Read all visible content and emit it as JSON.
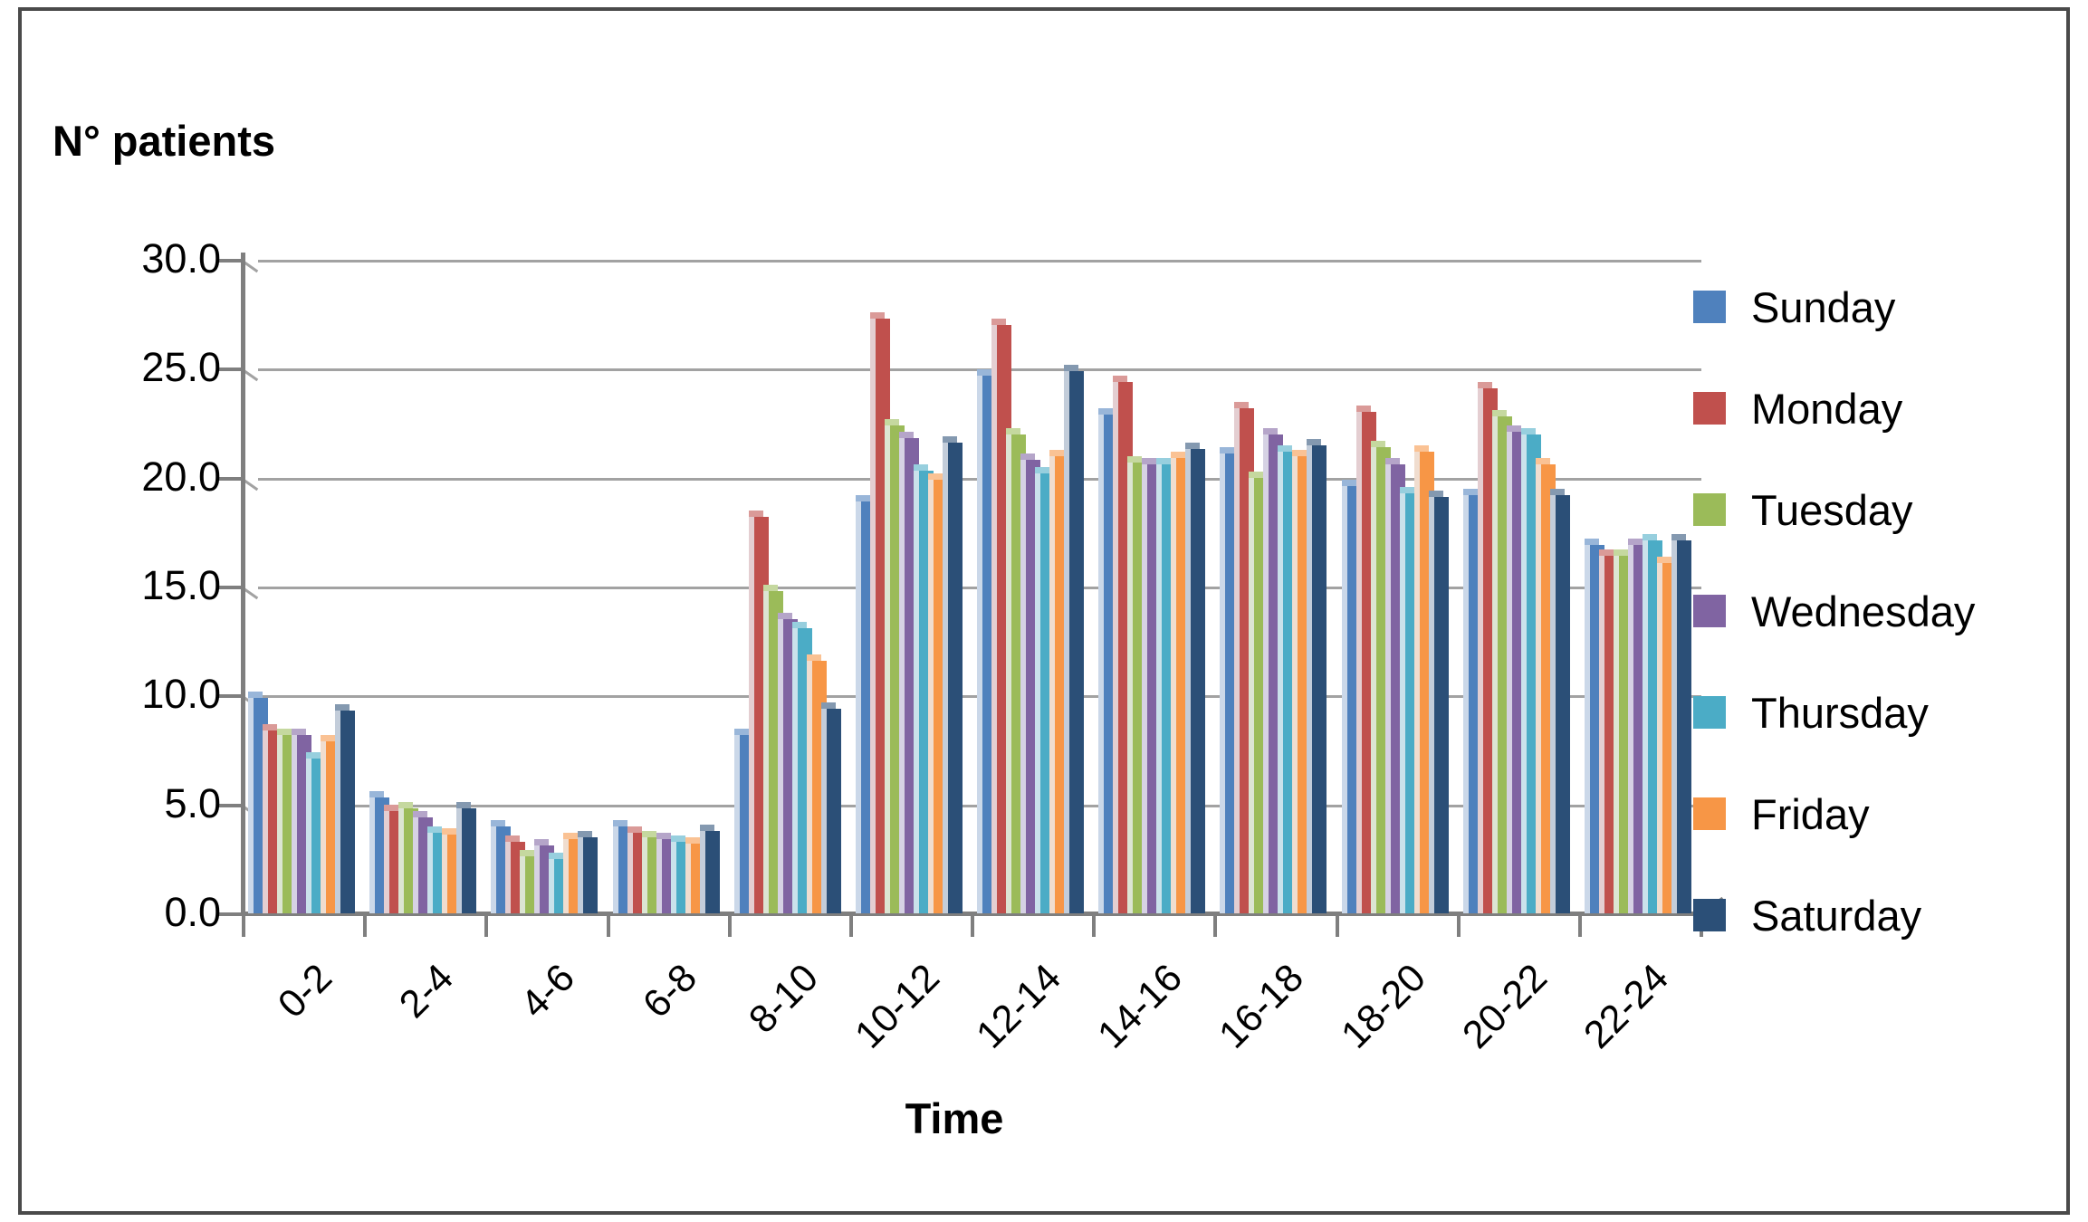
{
  "chart_data": {
    "type": "bar",
    "title": "",
    "ylabel": "N° patients",
    "xlabel": "Time",
    "categories": [
      "0-2",
      "2-4",
      "4-6",
      "6-8",
      "8-10",
      "10-12",
      "12-14",
      "14-16",
      "16-18",
      "18-20",
      "20-22",
      "22-24"
    ],
    "yticks": [
      "0.0",
      "5.0",
      "10.0",
      "15.0",
      "20.0",
      "25.0",
      "30.0"
    ],
    "ylim": [
      0,
      30
    ],
    "ytick_step": 5,
    "grid": true,
    "legend_position": "right",
    "series": [
      {
        "name": "Sunday",
        "color": "#4F81BD",
        "values": [
          9.9,
          5.3,
          4.0,
          4.0,
          8.2,
          18.9,
          24.7,
          22.9,
          21.1,
          19.6,
          19.2,
          16.9
        ]
      },
      {
        "name": "Monday",
        "color": "#C0504D",
        "values": [
          8.4,
          4.7,
          3.3,
          3.7,
          18.2,
          27.3,
          27.0,
          24.4,
          23.2,
          23.0,
          24.1,
          16.4
        ]
      },
      {
        "name": "Tuesday",
        "color": "#9BBB59",
        "values": [
          8.2,
          4.8,
          2.6,
          3.5,
          14.8,
          22.4,
          22.0,
          20.7,
          20.0,
          21.4,
          22.8,
          16.4
        ]
      },
      {
        "name": "Wednesday",
        "color": "#8064A2",
        "values": [
          8.2,
          4.4,
          3.1,
          3.4,
          13.5,
          21.8,
          20.8,
          20.6,
          22.0,
          20.6,
          22.1,
          16.9
        ]
      },
      {
        "name": "Thursday",
        "color": "#4BACC6",
        "values": [
          7.1,
          3.7,
          2.5,
          3.3,
          13.1,
          20.3,
          20.2,
          20.6,
          21.2,
          19.3,
          22.0,
          17.1
        ]
      },
      {
        "name": "Friday",
        "color": "#F79646",
        "values": [
          7.9,
          3.6,
          3.4,
          3.2,
          11.6,
          19.9,
          21.0,
          20.9,
          21.0,
          21.2,
          20.6,
          16.1
        ]
      },
      {
        "name": "Saturday",
        "color": "#2B4F77",
        "values": [
          9.3,
          4.8,
          3.5,
          3.8,
          9.4,
          21.6,
          24.9,
          21.3,
          21.5,
          19.1,
          19.2,
          17.1
        ]
      }
    ]
  }
}
